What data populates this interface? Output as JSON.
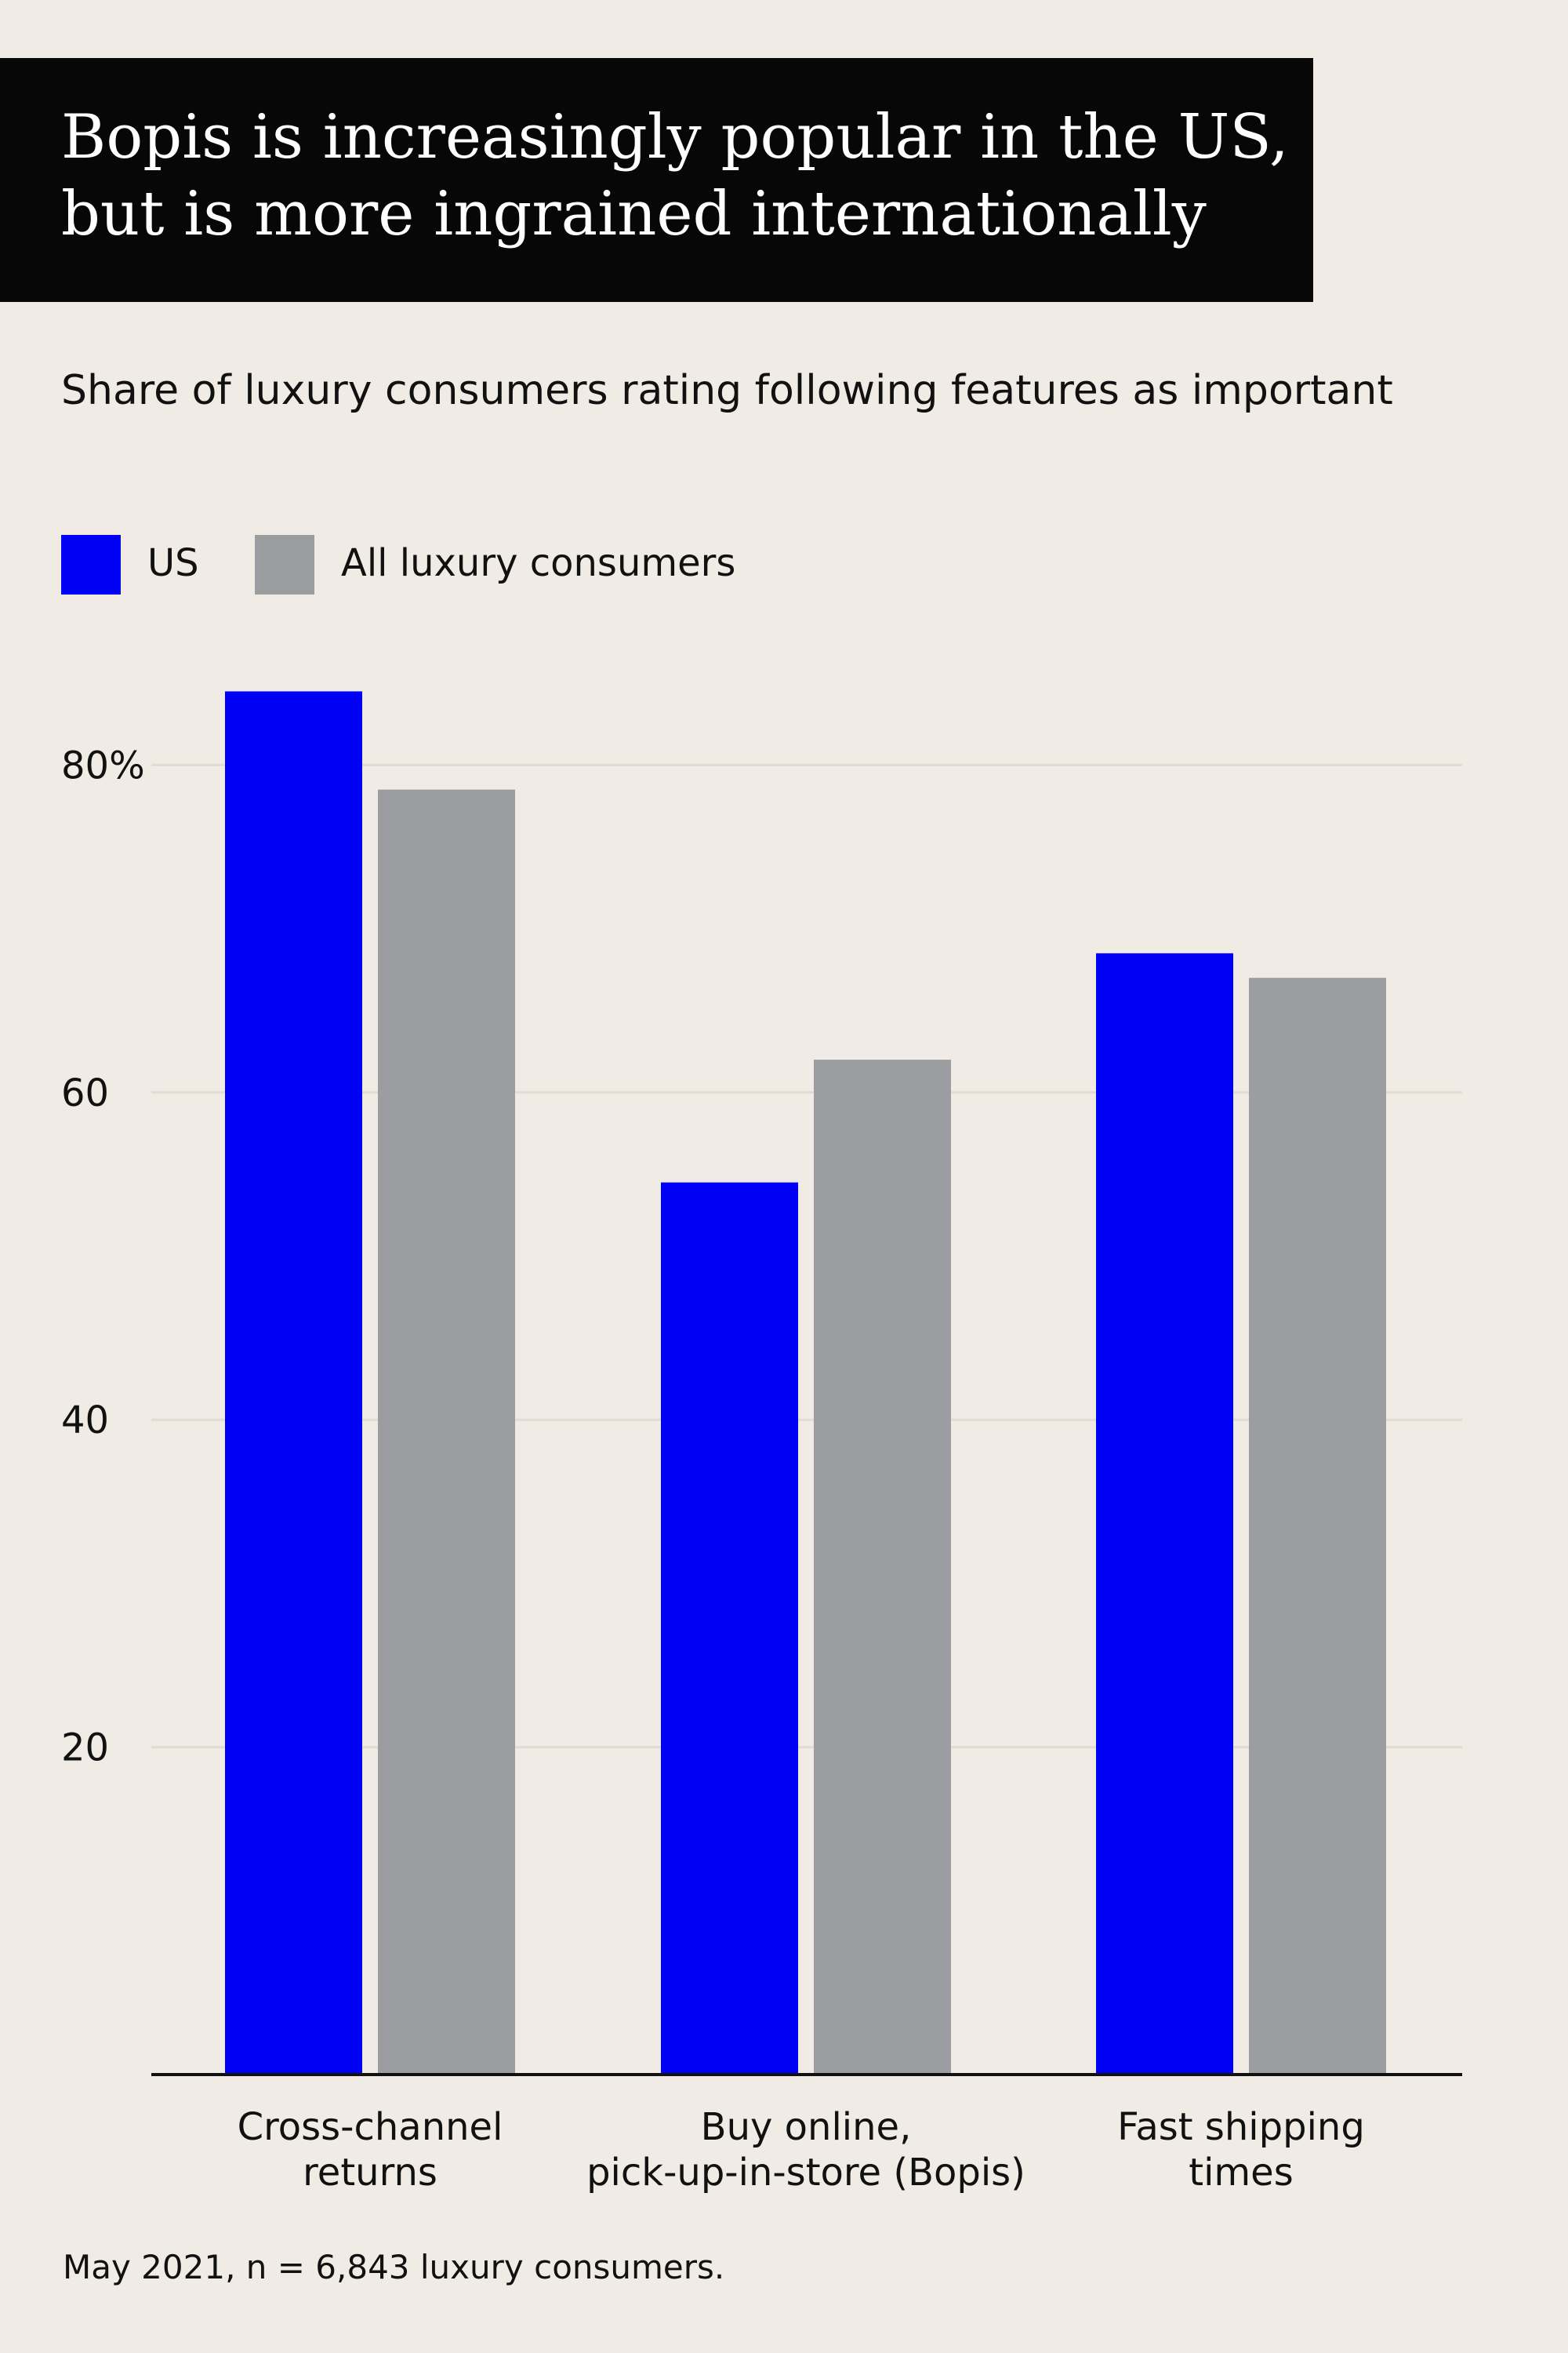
{
  "header": {
    "title_lines": [
      "Bopis is increasingly popular in the US,",
      "but is more ingrained internationally"
    ],
    "subtitle": "Share of luxury consumers rating following features as important"
  },
  "legend": [
    {
      "label": "US",
      "color": "#0000f5"
    },
    {
      "label": "All luxury consumers",
      "color": "#9c9da1"
    }
  ],
  "chart_data": {
    "type": "bar",
    "title": "Bopis is increasingly popular in the US, but is more ingrained internationally",
    "subtitle": "Share of luxury consumers rating following features as important",
    "categories": [
      [
        "Cross-channel",
        "returns"
      ],
      [
        "Buy online,",
        "pick-up-in-store (Bopis)"
      ],
      [
        "Fast shipping",
        "times"
      ]
    ],
    "series": [
      {
        "name": "US",
        "color": "#0000f5",
        "values": [
          84.5,
          54.5,
          68.5
        ]
      },
      {
        "name": "All luxury consumers",
        "color": "#9c9da1",
        "values": [
          78.5,
          62,
          67
        ]
      }
    ],
    "ylim": [
      0,
      80
    ],
    "yticks": [
      20,
      40,
      60,
      80
    ],
    "ytick_labels": [
      "20",
      "40",
      "60",
      "80%"
    ],
    "grid": true,
    "legend_position": "top-left"
  },
  "source": "May 2021, n = 6,843 luxury consumers."
}
